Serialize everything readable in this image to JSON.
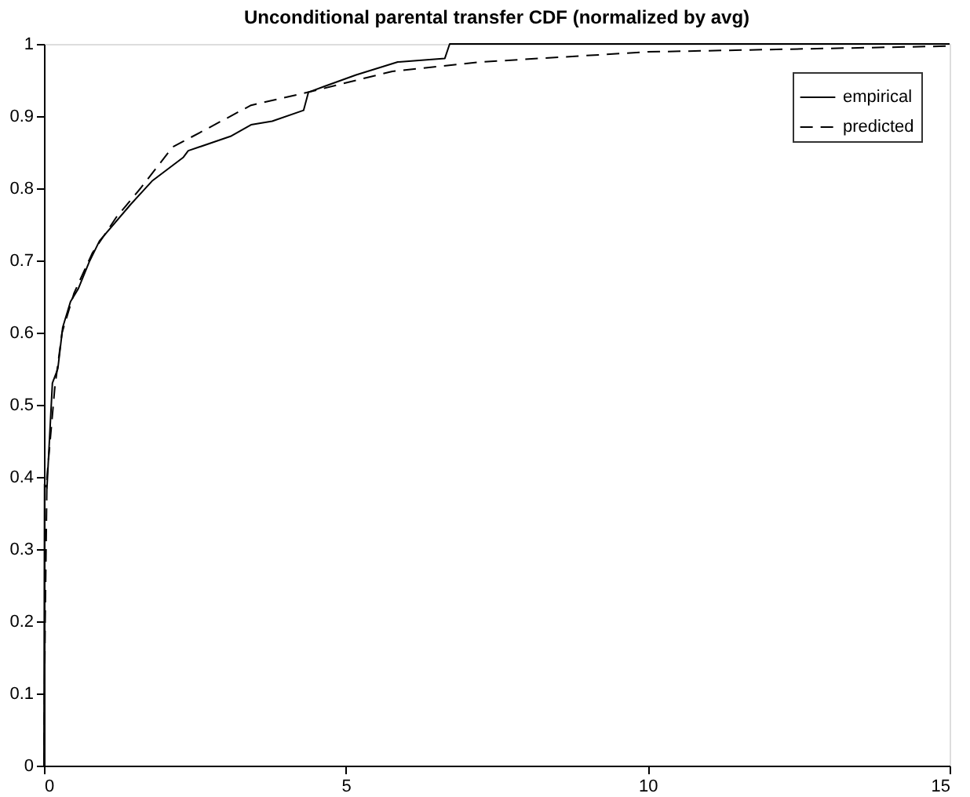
{
  "chart_data": {
    "type": "line",
    "title": "Unconditional parental transfer CDF (normalized by avg)",
    "xlim": [
      0,
      15
    ],
    "xticks": [
      0,
      5,
      10,
      15
    ],
    "ylim": [
      0,
      1
    ],
    "yticks": [
      0,
      0.1,
      0.2,
      0.3,
      0.4,
      0.5,
      0.6,
      0.7,
      0.8,
      0.9,
      1
    ],
    "grid": false,
    "legend": "top right",
    "series": [
      {
        "name": "empirical",
        "color": "#000000",
        "line_style": "solid",
        "x": [
          0,
          0.01,
          0.05,
          0.14,
          0.23,
          0.31,
          0.44,
          0.57,
          0.75,
          0.92,
          1.44,
          1.79,
          2.31,
          2.39,
          3.09,
          3.43,
          3.78,
          4.3,
          4.38,
          4.64,
          5.17,
          5.86,
          6.64,
          6.72,
          15
        ],
        "values": [
          0,
          0.39,
          0.385,
          0.53,
          0.55,
          0.607,
          0.643,
          0.661,
          0.698,
          0.727,
          0.778,
          0.81,
          0.843,
          0.852,
          0.872,
          0.888,
          0.893,
          0.908,
          0.933,
          0.941,
          0.957,
          0.975,
          0.98,
          1,
          1
        ]
      },
      {
        "name": "predicted",
        "color": "#000000",
        "line_style": "dashed",
        "x": [
          0,
          0.02,
          0.05,
          0.18,
          0.3,
          0.5,
          0.8,
          1.2,
          1.6,
          2.13,
          3.43,
          4.47,
          5.77,
          7.24,
          10,
          15
        ],
        "values": [
          0,
          0.2,
          0.4,
          0.524,
          0.6,
          0.655,
          0.71,
          0.76,
          0.8,
          0.857,
          0.915,
          0.935,
          0.962,
          0.975,
          0.989,
          0.997
        ]
      }
    ]
  }
}
